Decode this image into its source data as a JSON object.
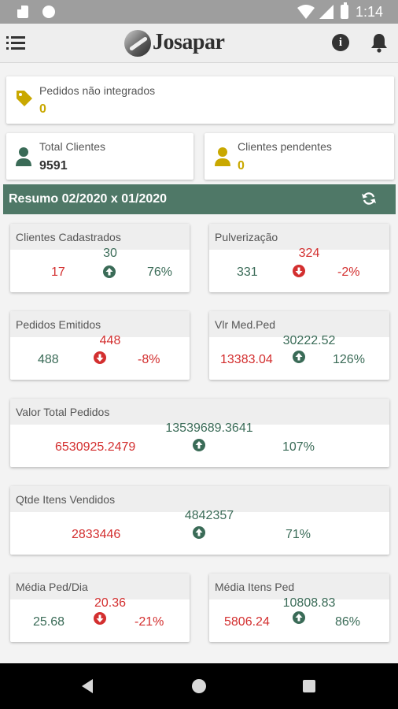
{
  "status_bar": {
    "time": "1:14"
  },
  "app": {
    "brand": "Josapar"
  },
  "colors": {
    "green": "#3a6b57",
    "red": "#d32f2f",
    "gold": "#c9a800",
    "header_bar": "#4f7867"
  },
  "top_cards": {
    "pedidos": {
      "label": "Pedidos não integrados",
      "value": "0",
      "icon": "tag-icon"
    },
    "clientes": {
      "label": "Total Clientes",
      "value": "9591",
      "icon": "person-icon"
    },
    "pendentes": {
      "label": "Clientes pendentes",
      "value": "0",
      "icon": "person-icon"
    }
  },
  "summary": {
    "title": "Resumo  02/2020 x 01/2020",
    "refresh_icon": "refresh-icon"
  },
  "metrics": [
    {
      "title": "Clientes Cadastrados",
      "top": "30",
      "bottom_left": "17",
      "pct": "76%",
      "direction": "up"
    },
    {
      "title": "Pulverização",
      "top": "324",
      "bottom_left": "331",
      "pct": "-2%",
      "direction": "down"
    },
    {
      "title": "Pedidos Emitidos",
      "top": "448",
      "bottom_left": "488",
      "pct": "-8%",
      "direction": "down"
    },
    {
      "title": "Vlr Med.Ped",
      "top": "30222.52",
      "bottom_left": "13383.04",
      "pct": "126%",
      "direction": "up"
    },
    {
      "title": "Valor Total Pedidos",
      "top": "13539689.3641",
      "bottom_left": "6530925.2479",
      "pct": "107%",
      "direction": "up"
    },
    {
      "title": "Qtde Itens Vendidos",
      "top": "4842357",
      "bottom_left": "2833446",
      "pct": "71%",
      "direction": "up"
    },
    {
      "title": "Média Ped/Dia",
      "top": "20.36",
      "bottom_left": "25.68",
      "pct": "-21%",
      "direction": "down"
    },
    {
      "title": "Média Itens Ped",
      "top": "10808.83",
      "bottom_left": "5806.24",
      "pct": "86%",
      "direction": "up"
    }
  ]
}
